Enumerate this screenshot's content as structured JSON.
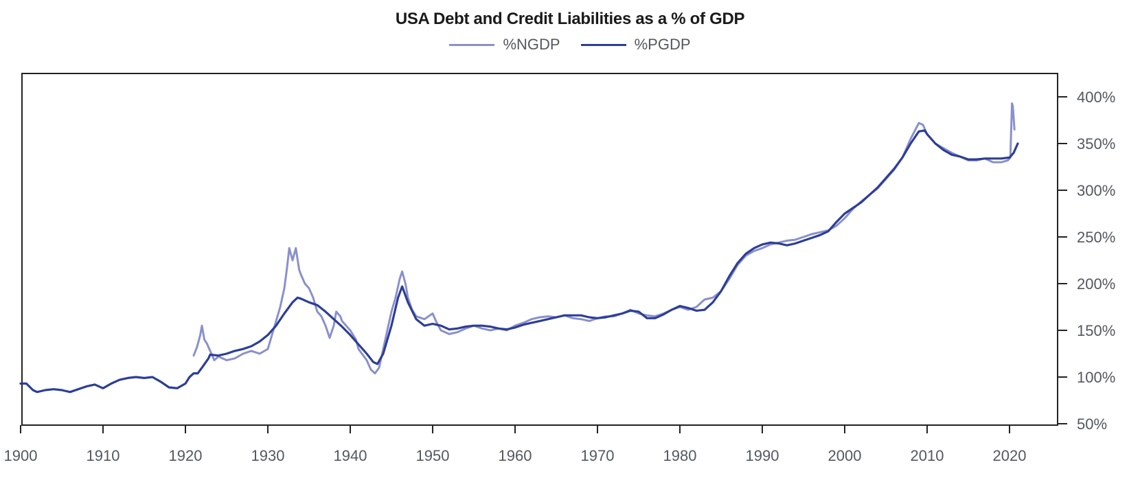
{
  "chart_data": {
    "type": "line",
    "title": "USA Debt and Credit Liabilities as a % of GDP",
    "xlabel": "",
    "ylabel": "",
    "xlim": [
      1900,
      2026
    ],
    "ylim": [
      50,
      425
    ],
    "x_ticks": [
      "1900",
      "1910",
      "1920",
      "1930",
      "1940",
      "1950",
      "1960",
      "1970",
      "1980",
      "1990",
      "2000",
      "2010",
      "2020"
    ],
    "y_ticks": [
      "50%",
      "100%",
      "150%",
      "200%",
      "250%",
      "300%",
      "350%",
      "400%"
    ],
    "y_tick_values": [
      50,
      100,
      150,
      200,
      250,
      300,
      350,
      400
    ],
    "x_tick_values": [
      1900,
      1910,
      1920,
      1930,
      1940,
      1950,
      1960,
      1970,
      1980,
      1990,
      2000,
      2010,
      2020
    ],
    "y_axis_side": "right",
    "grid": false,
    "legend_position": "top-center",
    "series": [
      {
        "name": "%NGDP",
        "color": "#8a90cc",
        "points": [
          [
            1921,
            123
          ],
          [
            1921.4,
            132
          ],
          [
            1921.8,
            145
          ],
          [
            1922,
            155
          ],
          [
            1922.3,
            140
          ],
          [
            1922.6,
            136
          ],
          [
            1923,
            128
          ],
          [
            1923.5,
            118
          ],
          [
            1924,
            122
          ],
          [
            1925,
            118
          ],
          [
            1926,
            120
          ],
          [
            1927,
            125
          ],
          [
            1928,
            128
          ],
          [
            1929,
            125
          ],
          [
            1930,
            130
          ],
          [
            1930.5,
            145
          ],
          [
            1931,
            160
          ],
          [
            1931.5,
            175
          ],
          [
            1932,
            195
          ],
          [
            1932.3,
            215
          ],
          [
            1932.6,
            238
          ],
          [
            1933,
            225
          ],
          [
            1933.4,
            238
          ],
          [
            1933.8,
            215
          ],
          [
            1934,
            210
          ],
          [
            1934.5,
            200
          ],
          [
            1935,
            195
          ],
          [
            1935.5,
            185
          ],
          [
            1936,
            170
          ],
          [
            1936.5,
            165
          ],
          [
            1937,
            155
          ],
          [
            1937.5,
            142
          ],
          [
            1938,
            155
          ],
          [
            1938.3,
            170
          ],
          [
            1938.8,
            165
          ],
          [
            1939,
            160
          ],
          [
            1940,
            150
          ],
          [
            1940.7,
            140
          ],
          [
            1941,
            130
          ],
          [
            1942,
            118
          ],
          [
            1942.5,
            108
          ],
          [
            1943,
            104
          ],
          [
            1943.5,
            110
          ],
          [
            1944,
            130
          ],
          [
            1944.5,
            150
          ],
          [
            1945,
            170
          ],
          [
            1945.5,
            185
          ],
          [
            1946,
            205
          ],
          [
            1946.3,
            213
          ],
          [
            1946.7,
            200
          ],
          [
            1947,
            185
          ],
          [
            1947.5,
            172
          ],
          [
            1948,
            165
          ],
          [
            1949,
            162
          ],
          [
            1950,
            168
          ],
          [
            1950.5,
            158
          ],
          [
            1951,
            150
          ],
          [
            1952,
            146
          ],
          [
            1953,
            148
          ],
          [
            1954,
            152
          ],
          [
            1955,
            155
          ],
          [
            1956,
            152
          ],
          [
            1957,
            150
          ],
          [
            1958,
            152
          ],
          [
            1959,
            150
          ],
          [
            1960,
            155
          ],
          [
            1961,
            158
          ],
          [
            1962,
            162
          ],
          [
            1963,
            164
          ],
          [
            1964,
            165
          ],
          [
            1965,
            164
          ],
          [
            1966,
            166
          ],
          [
            1967,
            163
          ],
          [
            1968,
            162
          ],
          [
            1969,
            160
          ],
          [
            1970,
            163
          ],
          [
            1971,
            165
          ],
          [
            1972,
            165
          ],
          [
            1973,
            168
          ],
          [
            1974,
            172
          ],
          [
            1975,
            168
          ],
          [
            1976,
            166
          ],
          [
            1977,
            165
          ],
          [
            1978,
            168
          ],
          [
            1979,
            172
          ],
          [
            1980,
            175
          ],
          [
            1981,
            172
          ],
          [
            1982,
            175
          ],
          [
            1983,
            183
          ],
          [
            1984,
            185
          ],
          [
            1985,
            192
          ],
          [
            1986,
            205
          ],
          [
            1987,
            220
          ],
          [
            1988,
            230
          ],
          [
            1989,
            235
          ],
          [
            1990,
            238
          ],
          [
            1991,
            242
          ],
          [
            1992,
            244
          ],
          [
            1993,
            246
          ],
          [
            1994,
            247
          ],
          [
            1995,
            250
          ],
          [
            1996,
            253
          ],
          [
            1997,
            255
          ],
          [
            1998,
            257
          ],
          [
            1999,
            262
          ],
          [
            2000,
            270
          ],
          [
            2001,
            280
          ],
          [
            2002,
            288
          ],
          [
            2003,
            295
          ],
          [
            2004,
            302
          ],
          [
            2005,
            312
          ],
          [
            2006,
            322
          ],
          [
            2007,
            335
          ],
          [
            2008,
            355
          ],
          [
            2009,
            372
          ],
          [
            2009.5,
            370
          ],
          [
            2010,
            360
          ],
          [
            2011,
            350
          ],
          [
            2012,
            345
          ],
          [
            2013,
            340
          ],
          [
            2014,
            336
          ],
          [
            2015,
            332
          ],
          [
            2016,
            332
          ],
          [
            2017,
            334
          ],
          [
            2018,
            330
          ],
          [
            2019,
            330
          ],
          [
            2019.8,
            332
          ],
          [
            2020.1,
            335
          ],
          [
            2020.3,
            393
          ],
          [
            2020.4,
            390
          ],
          [
            2020.6,
            365
          ]
        ]
      },
      {
        "name": "%PGDP",
        "color": "#2c3e96",
        "points": [
          [
            1900,
            93
          ],
          [
            1900.7,
            93
          ],
          [
            1901.5,
            86
          ],
          [
            1902,
            84
          ],
          [
            1903,
            86
          ],
          [
            1904,
            87
          ],
          [
            1905,
            86
          ],
          [
            1906,
            84
          ],
          [
            1907,
            87
          ],
          [
            1908,
            90
          ],
          [
            1909,
            92
          ],
          [
            1910,
            88
          ],
          [
            1911,
            93
          ],
          [
            1912,
            97
          ],
          [
            1913,
            99
          ],
          [
            1914,
            100
          ],
          [
            1915,
            99
          ],
          [
            1916,
            100
          ],
          [
            1917,
            95
          ],
          [
            1918,
            89
          ],
          [
            1919,
            88
          ],
          [
            1920,
            93
          ],
          [
            1920.5,
            100
          ],
          [
            1921,
            104
          ],
          [
            1921.5,
            104
          ],
          [
            1922,
            110
          ],
          [
            1922.8,
            120
          ],
          [
            1923,
            124
          ],
          [
            1924,
            123
          ],
          [
            1925,
            125
          ],
          [
            1926,
            128
          ],
          [
            1927,
            130
          ],
          [
            1928,
            133
          ],
          [
            1929,
            138
          ],
          [
            1930,
            145
          ],
          [
            1931,
            155
          ],
          [
            1932,
            168
          ],
          [
            1933,
            180
          ],
          [
            1933.6,
            185
          ],
          [
            1934,
            184
          ],
          [
            1935,
            180
          ],
          [
            1936,
            177
          ],
          [
            1937,
            170
          ],
          [
            1938,
            162
          ],
          [
            1939,
            154
          ],
          [
            1940,
            145
          ],
          [
            1941,
            135
          ],
          [
            1942,
            125
          ],
          [
            1942.8,
            116
          ],
          [
            1943.3,
            114
          ],
          [
            1944,
            125
          ],
          [
            1945,
            155
          ],
          [
            1945.8,
            185
          ],
          [
            1946.3,
            197
          ],
          [
            1947,
            180
          ],
          [
            1948,
            162
          ],
          [
            1949,
            155
          ],
          [
            1950,
            157
          ],
          [
            1951,
            155
          ],
          [
            1952,
            151
          ],
          [
            1953,
            152
          ],
          [
            1954,
            154
          ],
          [
            1955,
            155
          ],
          [
            1956,
            155
          ],
          [
            1957,
            154
          ],
          [
            1958,
            152
          ],
          [
            1959,
            151
          ],
          [
            1960,
            153
          ],
          [
            1961,
            156
          ],
          [
            1962,
            158
          ],
          [
            1963,
            160
          ],
          [
            1964,
            162
          ],
          [
            1965,
            164
          ],
          [
            1966,
            166
          ],
          [
            1967,
            166
          ],
          [
            1968,
            166
          ],
          [
            1969,
            164
          ],
          [
            1970,
            163
          ],
          [
            1971,
            164
          ],
          [
            1972,
            166
          ],
          [
            1973,
            168
          ],
          [
            1974,
            171
          ],
          [
            1975,
            170
          ],
          [
            1976,
            163
          ],
          [
            1977,
            163
          ],
          [
            1978,
            167
          ],
          [
            1979,
            172
          ],
          [
            1980,
            176
          ],
          [
            1981,
            174
          ],
          [
            1982,
            171
          ],
          [
            1983,
            172
          ],
          [
            1984,
            180
          ],
          [
            1985,
            192
          ],
          [
            1986,
            208
          ],
          [
            1987,
            222
          ],
          [
            1988,
            232
          ],
          [
            1989,
            238
          ],
          [
            1990,
            242
          ],
          [
            1991,
            244
          ],
          [
            1992,
            243
          ],
          [
            1993,
            241
          ],
          [
            1994,
            243
          ],
          [
            1995,
            246
          ],
          [
            1996,
            249
          ],
          [
            1997,
            252
          ],
          [
            1998,
            256
          ],
          [
            1999,
            266
          ],
          [
            2000,
            275
          ],
          [
            2001,
            281
          ],
          [
            2002,
            287
          ],
          [
            2003,
            295
          ],
          [
            2004,
            303
          ],
          [
            2005,
            313
          ],
          [
            2006,
            323
          ],
          [
            2007,
            335
          ],
          [
            2008,
            350
          ],
          [
            2009,
            363
          ],
          [
            2009.7,
            364
          ],
          [
            2010,
            360
          ],
          [
            2011,
            350
          ],
          [
            2012,
            343
          ],
          [
            2013,
            338
          ],
          [
            2014,
            336
          ],
          [
            2015,
            333
          ],
          [
            2016,
            333
          ],
          [
            2017,
            334
          ],
          [
            2018,
            334
          ],
          [
            2019,
            334
          ],
          [
            2020,
            335
          ],
          [
            2020.5,
            340
          ],
          [
            2021,
            350
          ]
        ]
      }
    ]
  },
  "legend": {
    "items": [
      {
        "label": "%NGDP",
        "color": "#8a90cc"
      },
      {
        "label": "%PGDP",
        "color": "#2c3e96"
      }
    ]
  }
}
